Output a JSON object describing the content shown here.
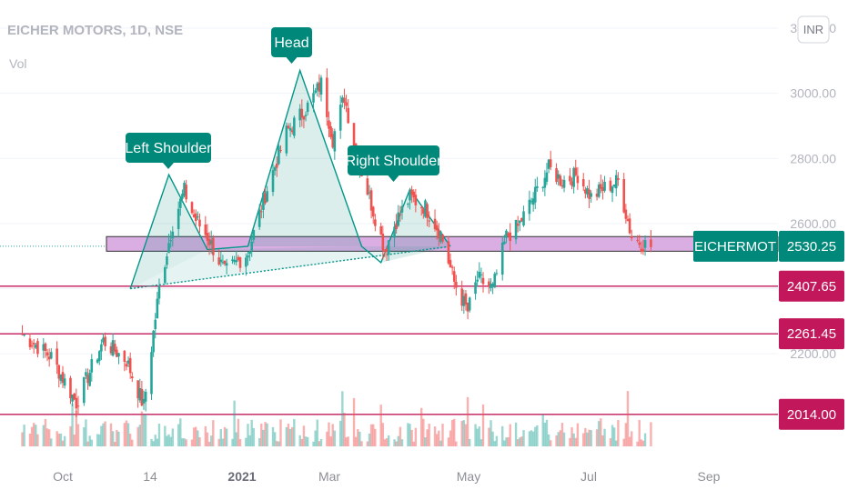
{
  "header": {
    "title": "EICHER MOTORS, 1D, NSE",
    "indicator": "Vol",
    "currency": "INR"
  },
  "colors": {
    "up": "#26a69a",
    "down": "#ef5350",
    "accent": "#00897b",
    "support": "#c2185b",
    "zone": "#ce93d8"
  },
  "chart_data": {
    "type": "candlestick",
    "ylim": [
      1950,
      3220
    ],
    "y_ticks": [
      "3200.00",
      "3000.00",
      "2800.00",
      "2600.00",
      "2200.00"
    ],
    "x_ticks": [
      "Oct",
      "14",
      "2021",
      "Mar",
      "May",
      "Jul",
      "Sep"
    ],
    "annotations": [
      {
        "label": "Left Shoulder"
      },
      {
        "label": "Head"
      },
      {
        "label": "Right Shoulder"
      }
    ],
    "zone": {
      "low": 2515,
      "high": 2560
    },
    "neckline": [
      [
        "2020-11-05",
        2400
      ],
      [
        "2021-04-20",
        2530
      ]
    ],
    "pattern_points": [
      [
        "2020-11-05",
        2400
      ],
      [
        "2020-11-25",
        2750
      ],
      [
        "2020-12-15",
        2520
      ],
      [
        "2021-01-05",
        2530
      ],
      [
        "2021-02-01",
        3070
      ],
      [
        "2021-03-05",
        2530
      ],
      [
        "2021-03-15",
        2480
      ],
      [
        "2021-03-30",
        2705
      ],
      [
        "2021-04-20",
        2530
      ]
    ],
    "levels": [
      {
        "value": 2530.25,
        "label": "2530.25",
        "name": "EICHERMOT",
        "color": "#00897b"
      },
      {
        "value": 2407.65,
        "label": "2407.65",
        "color": "#c2185b"
      },
      {
        "value": 2261.45,
        "label": "2261.45",
        "color": "#c2185b"
      },
      {
        "value": 2014.0,
        "label": "2014.00",
        "color": "#c2185b"
      }
    ],
    "keypoints": [
      [
        "2020-09-10",
        2260
      ],
      [
        "2020-09-25",
        2190
      ],
      [
        "2020-10-08",
        2050
      ],
      [
        "2020-10-22",
        2240
      ],
      [
        "2020-11-03",
        2180
      ],
      [
        "2020-11-12",
        2040
      ],
      [
        "2020-11-20",
        2400
      ],
      [
        "2020-11-27",
        2600
      ],
      [
        "2020-12-03",
        2700
      ],
      [
        "2020-12-08",
        2620
      ],
      [
        "2020-12-15",
        2560
      ],
      [
        "2020-12-24",
        2450
      ],
      [
        "2021-01-05",
        2510
      ],
      [
        "2021-01-14",
        2690
      ],
      [
        "2021-01-25",
        2880
      ],
      [
        "2021-02-05",
        2960
      ],
      [
        "2021-02-12",
        3030
      ],
      [
        "2021-02-18",
        2860
      ],
      [
        "2021-02-24",
        2990
      ],
      [
        "2021-03-02",
        2820
      ],
      [
        "2021-03-10",
        2660
      ],
      [
        "2021-03-17",
        2520
      ],
      [
        "2021-03-23",
        2610
      ],
      [
        "2021-03-30",
        2680
      ],
      [
        "2021-04-07",
        2650
      ],
      [
        "2021-04-15",
        2570
      ],
      [
        "2021-04-22",
        2420
      ],
      [
        "2021-04-29",
        2330
      ],
      [
        "2021-05-04",
        2430
      ],
      [
        "2021-05-12",
        2400
      ],
      [
        "2021-05-19",
        2560
      ],
      [
        "2021-05-25",
        2590
      ],
      [
        "2021-06-02",
        2680
      ],
      [
        "2021-06-10",
        2770
      ],
      [
        "2021-06-17",
        2730
      ],
      [
        "2021-06-25",
        2750
      ],
      [
        "2021-07-02",
        2680
      ],
      [
        "2021-07-09",
        2710
      ],
      [
        "2021-07-16",
        2730
      ],
      [
        "2021-07-23",
        2560
      ],
      [
        "2021-07-28",
        2540
      ],
      [
        "2021-08-02",
        2530
      ]
    ]
  }
}
